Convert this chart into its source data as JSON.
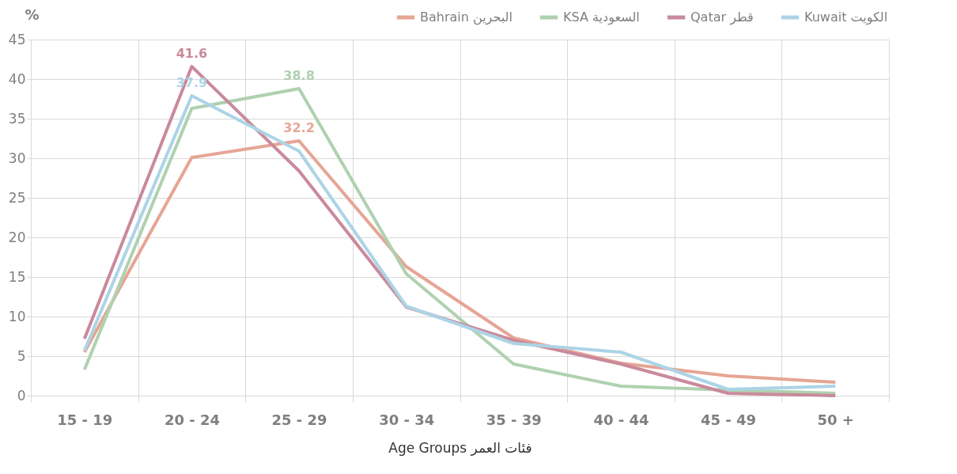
{
  "chart_data": {
    "type": "line",
    "xlabel": "Age Groups فئات العمر",
    "ylabel": "%",
    "categories": [
      "15 - 19",
      "20 - 24",
      "25 - 29",
      "30 - 34",
      "35 - 39",
      "40 - 44",
      "45 - 49",
      "50 +"
    ],
    "series": [
      {
        "name": "Bahrain البحرين",
        "color": "#e6a595",
        "values": [
          5.5,
          30.1,
          32.2,
          16.3,
          7.3,
          4.1,
          2.5,
          1.7
        ],
        "value_labels": [
          null,
          null,
          "32.2",
          null,
          null,
          null,
          null,
          null
        ]
      },
      {
        "name": "KSA السعودية",
        "color": "#afd1b0",
        "values": [
          3.3,
          36.3,
          38.8,
          15.4,
          4.0,
          1.2,
          0.7,
          0.3
        ],
        "value_labels": [
          null,
          null,
          "38.8",
          null,
          null,
          null,
          null,
          null
        ]
      },
      {
        "name": "Qatar قطر",
        "color": "#c98a9b",
        "values": [
          7.2,
          41.6,
          28.4,
          11.2,
          7.0,
          4.0,
          0.3,
          0.0
        ],
        "value_labels": [
          null,
          "41.6",
          null,
          null,
          null,
          null,
          null,
          null
        ]
      },
      {
        "name": "Kuwait الكويت",
        "color": "#acd4e6",
        "values": [
          5.7,
          37.9,
          30.9,
          11.3,
          6.6,
          5.5,
          0.8,
          1.2
        ],
        "value_labels": [
          null,
          "37.9",
          null,
          null,
          null,
          null,
          null,
          null
        ]
      }
    ],
    "ylim": [
      0,
      45
    ],
    "yticks": [
      0,
      5,
      10,
      15,
      20,
      25,
      30,
      35,
      40,
      45
    ],
    "grid": true,
    "legend": "top right",
    "marker": "none",
    "line_style": "solid"
  }
}
